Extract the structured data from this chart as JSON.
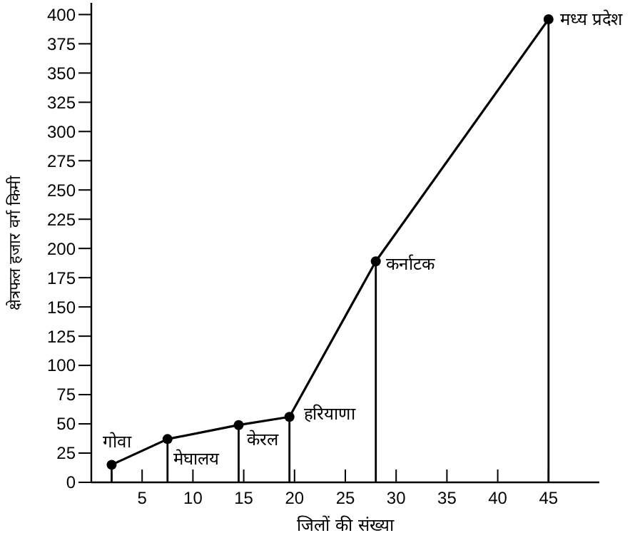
{
  "chart_data": {
    "type": "line",
    "xlabel": "जिलों की संख्या",
    "ylabel": "क्षेत्रफल हजार वर्ग किमी",
    "x": [
      2,
      7.5,
      14.5,
      19.5,
      28,
      45
    ],
    "series": [
      {
        "type": "lollipop",
        "color": "#000000",
        "values": [
          15,
          37,
          49,
          56,
          189,
          396
        ]
      },
      {
        "color": "#000000",
        "marker": "none",
        "values": [
          15,
          37,
          49,
          56,
          189,
          396
        ]
      }
    ],
    "xlim": [
      0,
      50
    ],
    "xticks": [
      5,
      10,
      15,
      20,
      25,
      30,
      35,
      40,
      45
    ],
    "ylim": [
      0,
      410
    ],
    "yticks": [
      0,
      25,
      50,
      75,
      100,
      125,
      150,
      175,
      200,
      225,
      250,
      275,
      300,
      325,
      350,
      375,
      400
    ],
    "annotations": [
      {
        "text": "गोवा",
        "x": 2,
        "y": 15
      },
      {
        "text": "मेघालय",
        "x": 7.5,
        "y": 37
      },
      {
        "text": "केरल",
        "x": 14.5,
        "y": 49
      },
      {
        "text": "हरियाणा",
        "x": 19.5,
        "y": 56
      },
      {
        "text": "कर्नाटक",
        "x": 28,
        "y": 189
      },
      {
        "text": "मध्य प्रदेश",
        "x": 45,
        "y": 396
      }
    ]
  }
}
